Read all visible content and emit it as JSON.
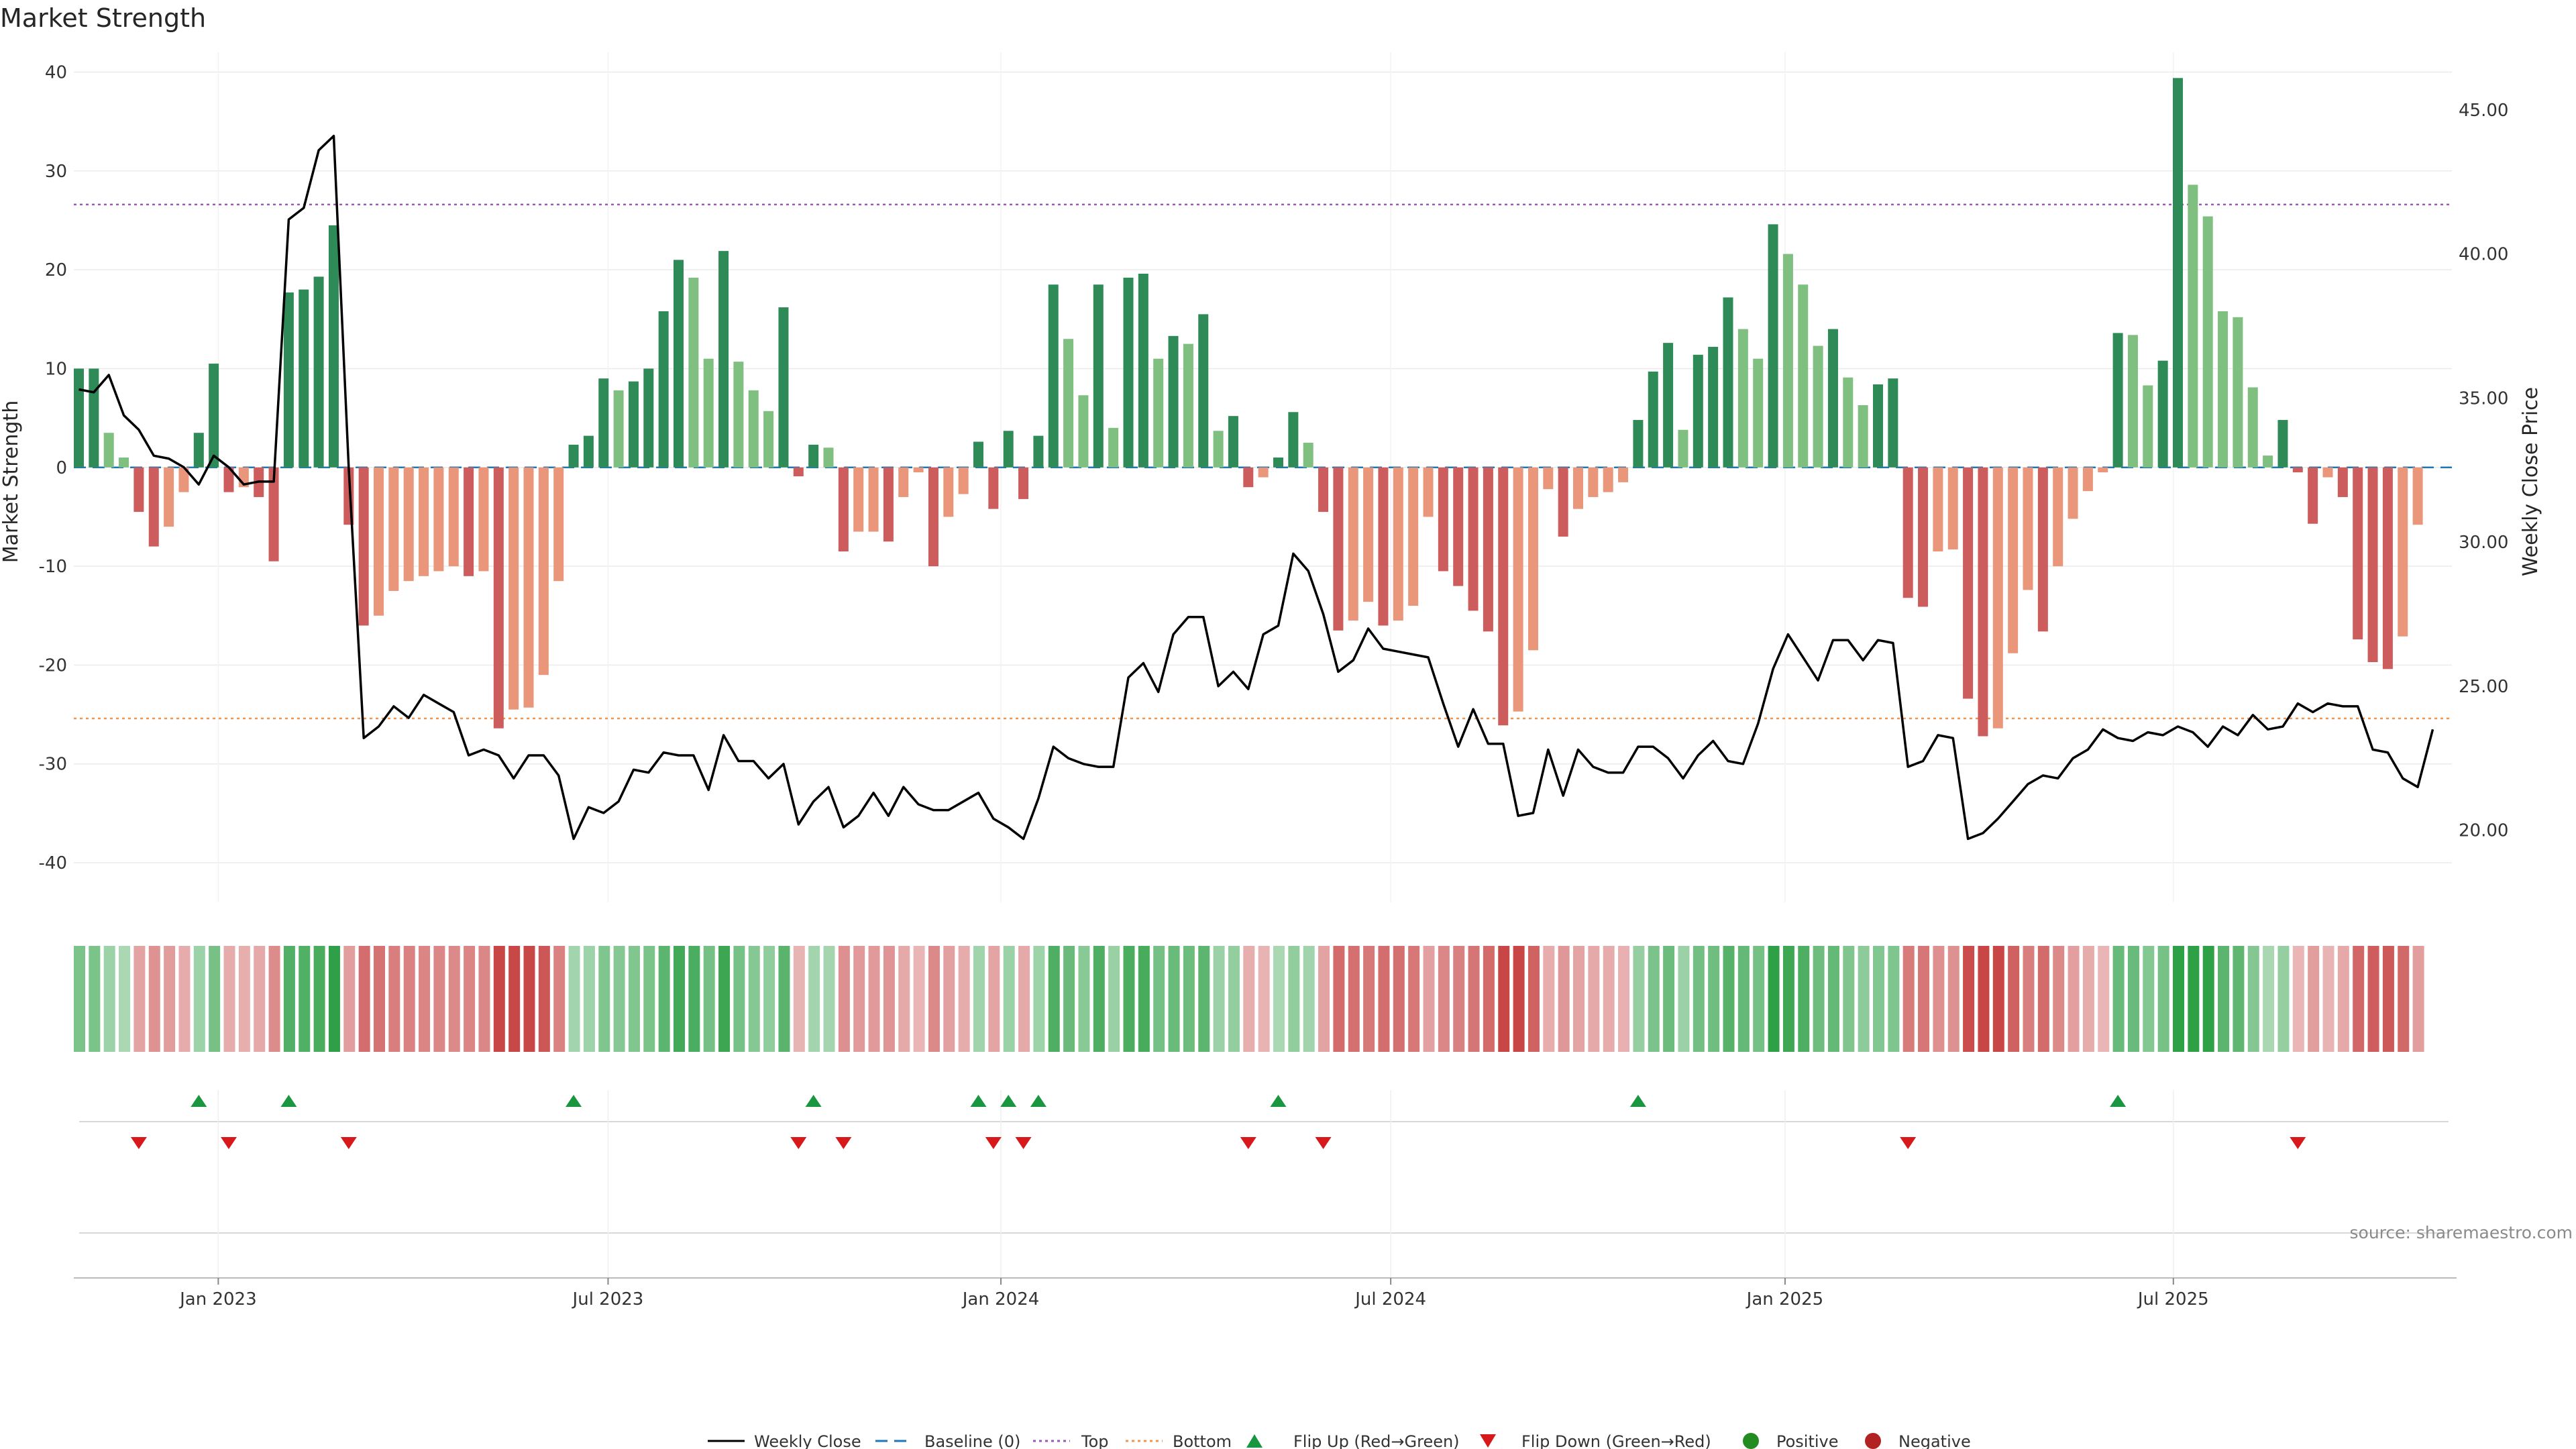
{
  "title": "Market Strength",
  "source": "source: sharemaestro.com",
  "chart_data": {
    "type": "bar+line",
    "title": "Market Strength",
    "ylabel_left": "Market Strength",
    "ylabel_right": "Weekly Close Price",
    "ylim_left": [
      -44,
      42
    ],
    "ylim_right": [
      17.5,
      47.0
    ],
    "yticks_left": [
      40,
      30,
      20,
      10,
      0,
      -10,
      -20,
      -30,
      -40
    ],
    "yticks_right": [
      "45.00",
      "40.00",
      "35.00",
      "30.00",
      "25.00",
      "20.00"
    ],
    "ytick_values_right": [
      45,
      40,
      35,
      30,
      25,
      20
    ],
    "x_labels": [
      {
        "label": "Jan 2023",
        "week": 9.3
      },
      {
        "label": "Jul 2023",
        "week": 35.3
      },
      {
        "label": "Jan 2024",
        "week": 61.5
      },
      {
        "label": "Jul 2024",
        "week": 87.5
      },
      {
        "label": "Jan 2025",
        "week": 113.8
      },
      {
        "label": "Jul 2025",
        "week": 139.7
      }
    ],
    "top_line": 26.6,
    "bottom_line": -25.4,
    "strength": [
      10,
      10,
      3.5,
      1,
      -4.5,
      -8,
      -6,
      -2.5,
      3.5,
      10.5,
      -2.5,
      -2,
      -3,
      -9.5,
      17.7,
      18,
      19.3,
      24.5,
      -5.8,
      -16,
      -15,
      -12.5,
      -11.5,
      -11,
      -10.5,
      -10,
      -11,
      -10.5,
      -26.4,
      -24.5,
      -24.3,
      -21,
      -11.5,
      2.3,
      3.2,
      9,
      7.8,
      8.7,
      10,
      15.8,
      21,
      19.2,
      11,
      21.9,
      10.7,
      7.8,
      5.7,
      16.2,
      -0.9,
      2.3,
      2,
      -8.5,
      -6.5,
      -6.5,
      -7.5,
      -3,
      -0.5,
      -10,
      -5,
      -2.7,
      2.6,
      -4.2,
      3.7,
      -3.2,
      3.2,
      18.5,
      13,
      7.3,
      18.5,
      4,
      19.2,
      19.6,
      11,
      13.3,
      12.5,
      15.5,
      3.7,
      5.2,
      -2,
      -1,
      1,
      5.6,
      2.5,
      -4.5,
      -16.5,
      -15.5,
      -13.6,
      -16,
      -15.5,
      -14,
      -5,
      -10.5,
      -12,
      -14.5,
      -16.6,
      -26.1,
      -24.7,
      -18.5,
      -2.2,
      -7,
      -4.2,
      -3,
      -2.5,
      -1.5,
      4.8,
      9.7,
      12.6,
      3.8,
      11.4,
      12.2,
      17.2,
      14,
      11,
      24.6,
      21.6,
      18.5,
      12.3,
      14,
      9.1,
      6.3,
      8.4,
      9,
      -13.2,
      -14.1,
      -8.5,
      -8.3,
      -23.4,
      -27.2,
      -26.4,
      -18.8,
      -12.4,
      -16.6,
      -10,
      -5.2,
      -2.4,
      -0.5,
      13.6,
      13.4,
      8.3,
      10.8,
      39.4,
      28.6,
      25.4,
      15.8,
      15.2,
      8.1,
      1.2,
      4.8,
      -0.5,
      -5.7,
      -1,
      -3,
      -17.4,
      -19.7,
      -20.4,
      -17.1,
      -5.8
    ],
    "close": [
      35.3,
      35.2,
      35.8,
      34.4,
      33.9,
      33.0,
      32.9,
      32.6,
      32.0,
      33.0,
      32.6,
      32.0,
      32.1,
      32.1,
      41.2,
      41.6,
      43.6,
      44.1,
      32.6,
      23.2,
      23.6,
      24.3,
      23.9,
      24.7,
      24.4,
      24.1,
      22.6,
      22.8,
      22.6,
      21.8,
      22.6,
      22.6,
      21.9,
      19.7,
      20.8,
      20.6,
      21.0,
      22.1,
      22.0,
      22.7,
      22.6,
      22.6,
      21.4,
      23.3,
      22.4,
      22.4,
      21.8,
      22.3,
      20.2,
      21.0,
      21.5,
      20.1,
      20.5,
      21.3,
      20.5,
      21.5,
      20.9,
      20.7,
      20.7,
      21.0,
      21.3,
      20.4,
      20.1,
      19.7,
      21.1,
      22.9,
      22.5,
      22.3,
      22.2,
      22.2,
      25.3,
      25.8,
      24.8,
      26.8,
      27.4,
      27.4,
      25.0,
      25.5,
      24.9,
      26.8,
      27.1,
      29.6,
      29.0,
      27.5,
      25.5,
      25.9,
      27.0,
      26.3,
      26.2,
      26.1,
      26.0,
      24.4,
      22.9,
      24.2,
      23.0,
      23.0,
      20.5,
      20.6,
      22.8,
      21.2,
      22.8,
      22.2,
      22.0,
      22.0,
      22.9,
      22.9,
      22.5,
      21.8,
      22.6,
      23.1,
      22.4,
      22.3,
      23.7,
      25.6,
      26.8,
      26.0,
      25.2,
      26.6,
      26.6,
      25.9,
      26.6,
      26.5,
      22.2,
      22.4,
      23.3,
      23.2,
      19.7,
      19.9,
      20.4,
      21.0,
      21.6,
      21.9,
      21.8,
      22.5,
      22.8,
      23.5,
      23.2,
      23.1,
      23.4,
      23.3,
      23.6,
      23.4,
      22.9,
      23.6,
      23.3,
      24.0,
      23.5,
      23.6,
      24.4,
      24.1,
      24.4,
      24.3,
      24.3,
      22.8,
      22.7,
      21.8,
      21.5,
      23.5
    ],
    "flips_up_weeks": [
      8,
      14,
      33,
      49,
      60,
      62,
      64,
      80,
      104,
      136
    ],
    "flips_down_weeks": [
      4,
      10,
      18,
      48,
      51,
      61,
      63,
      78,
      83,
      122,
      148
    ],
    "legend": [
      "Weekly Close",
      "Baseline (0)",
      "Top",
      "Bottom",
      "Flip Up (Red→Green)",
      "Flip Down (Green→Red)",
      "Positive",
      "Negative"
    ],
    "colors": {
      "pos_dark": "#2e8b57",
      "pos_light": "#7fbf7f",
      "neg_dark": "#cd5c5c",
      "neg_light": "#e9967a",
      "close_line": "#000000",
      "baseline": "#1f77b4",
      "top": "#9b59b6",
      "bottom": "#f0954f",
      "flip_up": "#1a9641",
      "flip_down": "#d7191c",
      "positive_dot": "#228b22",
      "negative_dot": "#b22222"
    }
  }
}
